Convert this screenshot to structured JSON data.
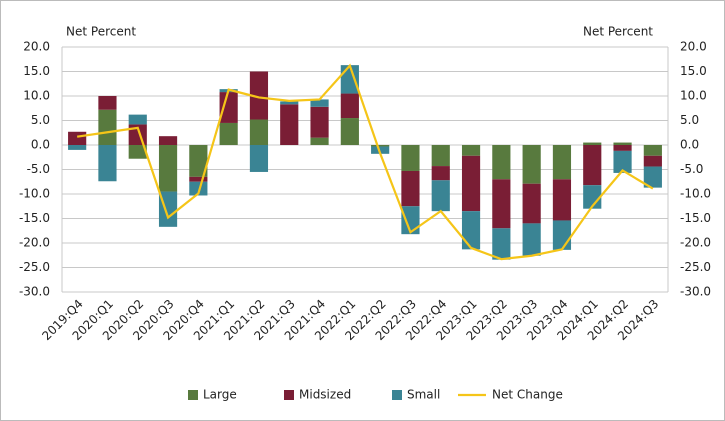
{
  "chart_data": {
    "type": "bar",
    "stacked": true,
    "ylabel": "Net Percent",
    "y2label": "Net Percent",
    "categories": [
      "2019:Q4",
      "2020:Q1",
      "2020:Q2",
      "2020:Q3",
      "2020:Q4",
      "2021:Q1",
      "2021:Q2",
      "2021:Q3",
      "2021:Q4",
      "2022:Q1",
      "2022:Q2",
      "2022:Q3",
      "2022:Q4",
      "2023:Q1",
      "2023:Q2",
      "2023:Q3",
      "2023:Q4",
      "2024:Q1",
      "2024:Q2",
      "2024:Q3"
    ],
    "series": [
      {
        "name": "Large",
        "color": "#587a3e",
        "values": [
          0,
          7.2,
          -2.8,
          -9.5,
          -6.5,
          4.5,
          5.2,
          0,
          1.5,
          5.5,
          -0.3,
          -5.3,
          -4.3,
          -2.2,
          -7.0,
          -7.9,
          -7.0,
          0.5,
          0.5,
          -2.2
        ]
      },
      {
        "name": "Midsized",
        "color": "#7a1e35",
        "values": [
          2.7,
          2.8,
          4.2,
          1.8,
          -1.0,
          6.3,
          9.8,
          8.3,
          6.3,
          5.0,
          0,
          -7.2,
          -2.9,
          -11.3,
          -10.0,
          -8.1,
          -8.4,
          -8.2,
          -1.2,
          -2.2
        ]
      },
      {
        "name": "Small",
        "color": "#3a8494",
        "values": [
          -1.0,
          -7.4,
          2.0,
          -7.2,
          -2.8,
          0.6,
          -5.5,
          0.6,
          1.5,
          5.8,
          -1.5,
          -5.7,
          -6.3,
          -7.8,
          -6.4,
          -6.6,
          -6.0,
          -4.8,
          -4.5,
          -4.3
        ]
      },
      {
        "name": "Net Change",
        "type": "line",
        "color": "#f5c518",
        "values": [
          1.7,
          2.6,
          3.5,
          -14.8,
          -9.9,
          11.3,
          9.7,
          9.0,
          9.3,
          16.2,
          -1.7,
          -17.8,
          -13.5,
          -21.0,
          -23.3,
          -22.6,
          -21.3,
          -12.5,
          -5.2,
          -8.9
        ]
      }
    ],
    "ylim": [
      -30,
      20
    ],
    "yticks": [
      {
        "value": -30,
        "label": "-30.0"
      },
      {
        "value": -25,
        "label": "-25.0"
      },
      {
        "value": -20,
        "label": "-20.0"
      },
      {
        "value": -15,
        "label": "-15.0"
      },
      {
        "value": -10,
        "label": "-10.0"
      },
      {
        "value": -5,
        "label": "-5.0"
      },
      {
        "value": 0,
        "label": "0.0"
      },
      {
        "value": 5,
        "label": "5.0"
      },
      {
        "value": 10,
        "label": "10.0"
      },
      {
        "value": 15,
        "label": "15.0"
      },
      {
        "value": 20,
        "label": "20.0"
      }
    ],
    "y2lim": [
      -30,
      20
    ],
    "y2ticks": [
      {
        "value": -30,
        "label": "-30.0"
      },
      {
        "value": -25,
        "label": "-25.0"
      },
      {
        "value": -20,
        "label": "-20.0"
      },
      {
        "value": -15,
        "label": "-15.0"
      },
      {
        "value": -10,
        "label": "-10.0"
      },
      {
        "value": -5,
        "label": "-5.0"
      },
      {
        "value": 0,
        "label": "0.0"
      },
      {
        "value": 5,
        "label": "5.0"
      },
      {
        "value": 10,
        "label": "10.0"
      },
      {
        "value": 15,
        "label": "15.0"
      },
      {
        "value": 20,
        "label": "20.0"
      }
    ],
    "grid": true,
    "legend": "bottom"
  }
}
